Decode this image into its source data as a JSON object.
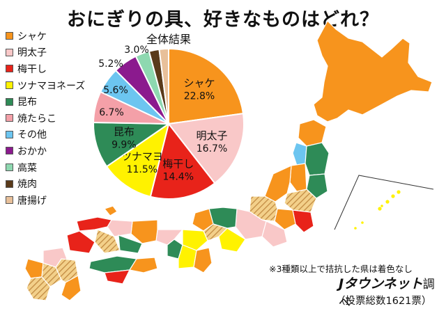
{
  "title": "おにぎりの具、好きなものはどれ？",
  "note": "※3種類以上で拮抗した県は着色なし",
  "brand": {
    "name": "Jタウンネット",
    "suffix": "調べ",
    "votes": "（投票総数1621票）"
  },
  "legend": [
    {
      "label": "シャケ",
      "color": "#F7941D"
    },
    {
      "label": "明太子",
      "color": "#F9C8C8"
    },
    {
      "label": "梅干し",
      "color": "#E8231A"
    },
    {
      "label": "ツナマヨネーズ",
      "color": "#FFF200"
    },
    {
      "label": "昆布",
      "color": "#2E8B57"
    },
    {
      "label": "焼たらこ",
      "color": "#F4A0A8"
    },
    {
      "label": "その他",
      "color": "#6CC5F0"
    },
    {
      "label": "おかか",
      "color": "#8B1A8E"
    },
    {
      "label": "高菜",
      "color": "#8ED8B0"
    },
    {
      "label": "焼肉",
      "color": "#5A3A1A"
    },
    {
      "label": "唐揚げ",
      "color": "#E8C09A"
    }
  ],
  "chart_data": {
    "type": "pie",
    "title": "全体結果",
    "slices": [
      {
        "label": "シャケ",
        "value": 22.8,
        "display": "22.8%",
        "color": "#F7941D"
      },
      {
        "label": "明太子",
        "value": 16.7,
        "display": "16.7%",
        "color": "#F9C8C8"
      },
      {
        "label": "梅干し",
        "value": 14.4,
        "display": "14.4%",
        "color": "#E8231A"
      },
      {
        "label": "ツナマヨ",
        "value": 11.5,
        "display": "11.5%",
        "color": "#FFF200"
      },
      {
        "label": "昆布",
        "value": 9.9,
        "display": "9.9%",
        "color": "#2E8B57"
      },
      {
        "label": "",
        "value": 6.7,
        "display": "6.7%",
        "color": "#F4A0A8"
      },
      {
        "label": "",
        "value": 5.6,
        "display": "5.6%",
        "color": "#6CC5F0"
      },
      {
        "label": "",
        "value": 5.2,
        "display": "5.2%",
        "color": "#8B1A8E"
      },
      {
        "label": "",
        "value": 3.0,
        "display": "3.0%",
        "color": "#8ED8B0"
      },
      {
        "label": "",
        "value": 2.2,
        "display": "",
        "color": "#5A3A1A"
      },
      {
        "label": "",
        "value": 2.0,
        "display": "",
        "color": "#E8C09A"
      }
    ]
  },
  "map": {
    "colors": {
      "shake": "#F7941D",
      "mentaiko": "#F9C8C8",
      "umeboshi": "#E8231A",
      "tuna": "#FFF200",
      "konbu": "#2E8B57",
      "tarako": "#F4A0A8",
      "other": "#6CC5F0",
      "okaka": "#8B1A8E",
      "hatched": "#C8A050"
    }
  }
}
